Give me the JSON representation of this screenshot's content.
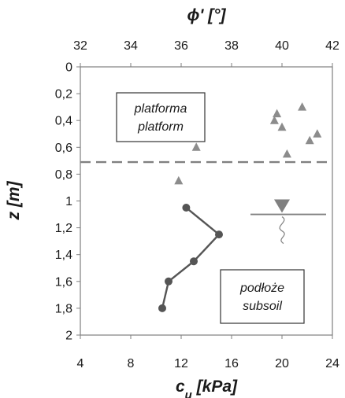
{
  "chart_data": {
    "type": "scatter",
    "top_axis": {
      "label": "ϕ' [°]",
      "range": [
        32,
        42
      ],
      "ticks": [
        "32",
        "34",
        "36",
        "38",
        "40",
        "42"
      ]
    },
    "bottom_axis": {
      "label": "c",
      "label_sub": "u",
      "label_suffix": " [kPa]",
      "range": [
        4,
        24
      ],
      "ticks": [
        "4",
        "8",
        "12",
        "16",
        "20",
        "24"
      ]
    },
    "y_axis": {
      "label": "z [m]",
      "range": [
        0,
        2
      ],
      "inverted": true,
      "ticks": [
        "0",
        "0,2",
        "0,4",
        "0,6",
        "0,8",
        "1",
        "1,2",
        "1,4",
        "1,6",
        "1,8",
        "2"
      ]
    },
    "series": [
      {
        "axis": "top",
        "marker": "triangle",
        "color": "#8c8c8c",
        "points": [
          {
            "x": 40.8,
            "y": 0.3
          },
          {
            "x": 39.8,
            "y": 0.35
          },
          {
            "x": 39.7,
            "y": 0.4
          },
          {
            "x": 40.0,
            "y": 0.45
          },
          {
            "x": 41.4,
            "y": 0.5
          },
          {
            "x": 41.1,
            "y": 0.55
          },
          {
            "x": 36.6,
            "y": 0.6
          },
          {
            "x": 40.2,
            "y": 0.65
          },
          {
            "x": 35.9,
            "y": 0.85
          }
        ]
      },
      {
        "axis": "bottom",
        "marker": "circle-line",
        "color": "#555555",
        "points": [
          {
            "x": 12.4,
            "y": 1.05
          },
          {
            "x": 15.0,
            "y": 1.25
          },
          {
            "x": 13.0,
            "y": 1.45
          },
          {
            "x": 11.0,
            "y": 1.6
          },
          {
            "x": 10.5,
            "y": 1.8
          }
        ]
      }
    ],
    "platform_boundary_depth": 0.71,
    "water_table": {
      "x_range": [
        17.5,
        23.5
      ],
      "depth": 1.1,
      "marker_x": 20.0
    },
    "annotations": [
      {
        "id": "platform",
        "lines": [
          "platforma",
          "platform"
        ]
      },
      {
        "id": "subsoil",
        "lines": [
          "podłoże",
          "subsoil"
        ]
      }
    ],
    "colors": {
      "frame": "#7f7f7f",
      "triangle": "#8c8c8c",
      "circle": "#555555",
      "water": "#808080"
    }
  }
}
